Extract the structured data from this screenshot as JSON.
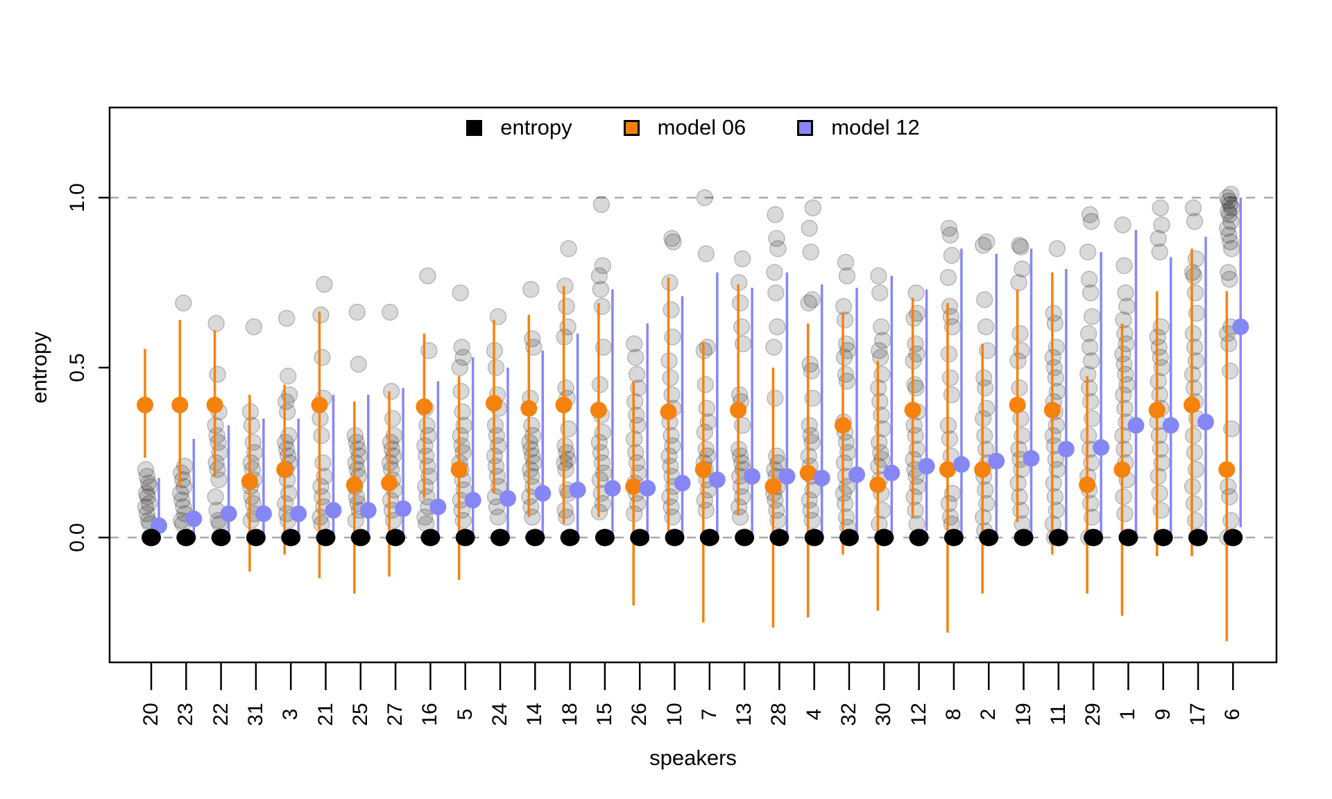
{
  "legend": {
    "items": [
      {
        "label": "entropy",
        "color": "#000000"
      },
      {
        "label": "model 06",
        "color": "#f5820d"
      },
      {
        "label": "model 12",
        "color": "#8687f7"
      }
    ]
  },
  "axes": {
    "x_label": "speakers",
    "y_label": "entropy",
    "y_ticks": [
      "0.0",
      "0.5",
      "1.0"
    ],
    "y_tick_values": [
      0,
      0.5,
      1
    ]
  },
  "chart_data": {
    "type": "scatter",
    "title": "",
    "xlabel": "speakers",
    "ylabel": "entropy",
    "ylim": [
      -0.39,
      1.27
    ],
    "gridlines_dashed_at": [
      0.0,
      1.0
    ],
    "legend_position": "top-center-inside",
    "colors": {
      "entropy_dot": "#000000",
      "model06": "#f5820d",
      "model12": "#8687f7",
      "gray_point_fill": "rgba(0,0,0,0.15)",
      "gray_point_stroke": "rgba(0,0,0,0.22)",
      "gridline": "#a8a8a8"
    },
    "series_note": "per speaker: entropy = black dot value; model06/model12 = mean dot with lo-hi error bar; points = individual gray entropy observations",
    "speakers": [
      {
        "label": "20",
        "entropy": 0.0,
        "model06": {
          "mean": 0.39,
          "lo": 0.235,
          "hi": 0.555
        },
        "model12": {
          "mean": 0.035,
          "lo": 0.0,
          "hi": 0.175
        },
        "points": [
          0.2,
          0.18,
          0.16,
          0.15,
          0.13,
          0.12,
          0.1,
          0.09,
          0.07,
          0.05,
          0.04
        ]
      },
      {
        "label": "23",
        "entropy": 0.0,
        "model06": {
          "mean": 0.39,
          "lo": 0.15,
          "hi": 0.64
        },
        "model12": {
          "mean": 0.055,
          "lo": 0.0,
          "hi": 0.29
        },
        "points": [
          0.69,
          0.21,
          0.19,
          0.17,
          0.15,
          0.13,
          0.11,
          0.09,
          0.07,
          0.05,
          0.04
        ]
      },
      {
        "label": "22",
        "entropy": 0.0,
        "model06": {
          "mean": 0.39,
          "lo": 0.18,
          "hi": 0.61
        },
        "model12": {
          "mean": 0.07,
          "lo": 0.0,
          "hi": 0.33
        },
        "points": [
          0.63,
          0.48,
          0.37,
          0.33,
          0.3,
          0.28,
          0.25,
          0.22,
          0.2,
          0.17,
          0.12,
          0.08,
          0.05,
          0.04
        ]
      },
      {
        "label": "31",
        "entropy": 0.0,
        "model06": {
          "mean": 0.165,
          "lo": -0.1,
          "hi": 0.42
        },
        "model12": {
          "mean": 0.07,
          "lo": 0.0,
          "hi": 0.35
        },
        "points": [
          0.62,
          0.37,
          0.33,
          0.28,
          0.25,
          0.22,
          0.2,
          0.17,
          0.15,
          0.12,
          0.1,
          0.07,
          0.05
        ]
      },
      {
        "label": "3",
        "entropy": 0.0,
        "model06": {
          "mean": 0.2,
          "lo": -0.05,
          "hi": 0.45
        },
        "model12": {
          "mean": 0.07,
          "lo": 0.0,
          "hi": 0.35
        },
        "points": [
          0.645,
          0.475,
          0.42,
          0.4,
          0.37,
          0.3,
          0.28,
          0.26,
          0.24,
          0.22,
          0.2,
          0.17,
          0.13,
          0.1,
          0.07,
          0.05
        ]
      },
      {
        "label": "21",
        "entropy": 0.0,
        "model06": {
          "mean": 0.39,
          "lo": -0.12,
          "hi": 0.665
        },
        "model12": {
          "mean": 0.08,
          "lo": 0.0,
          "hi": 0.42
        },
        "points": [
          0.745,
          0.655,
          0.53,
          0.41,
          0.35,
          0.3,
          0.22,
          0.18,
          0.15,
          0.12,
          0.09,
          0.06,
          0.04
        ]
      },
      {
        "label": "25",
        "entropy": 0.0,
        "model06": {
          "mean": 0.155,
          "lo": -0.165,
          "hi": 0.4
        },
        "model12": {
          "mean": 0.08,
          "lo": 0.0,
          "hi": 0.42
        },
        "points": [
          0.663,
          0.51,
          0.3,
          0.28,
          0.26,
          0.24,
          0.22,
          0.2,
          0.18,
          0.15,
          0.12,
          0.1,
          0.08,
          0.05
        ]
      },
      {
        "label": "27",
        "entropy": 0.0,
        "model06": {
          "mean": 0.16,
          "lo": -0.115,
          "hi": 0.43
        },
        "model12": {
          "mean": 0.085,
          "lo": 0.0,
          "hi": 0.44
        },
        "points": [
          0.663,
          0.43,
          0.35,
          0.3,
          0.28,
          0.26,
          0.24,
          0.22,
          0.2,
          0.17,
          0.14,
          0.11,
          0.08,
          0.05
        ]
      },
      {
        "label": "16",
        "entropy": 0.0,
        "model06": {
          "mean": 0.385,
          "lo": 0.115,
          "hi": 0.6
        },
        "model12": {
          "mean": 0.09,
          "lo": 0.0,
          "hi": 0.46
        },
        "points": [
          0.77,
          0.55,
          0.38,
          0.33,
          0.3,
          0.27,
          0.24,
          0.21,
          0.18,
          0.15,
          0.12,
          0.09,
          0.06,
          0.04
        ]
      },
      {
        "label": "5",
        "entropy": 0.0,
        "model06": {
          "mean": 0.2,
          "lo": -0.125,
          "hi": 0.475
        },
        "model12": {
          "mean": 0.11,
          "lo": 0.0,
          "hi": 0.53
        },
        "points": [
          0.72,
          0.56,
          0.53,
          0.5,
          0.43,
          0.37,
          0.33,
          0.3,
          0.27,
          0.25,
          0.22,
          0.2,
          0.17,
          0.14,
          0.11,
          0.08,
          0.05
        ]
      },
      {
        "label": "24",
        "entropy": 0.0,
        "model06": {
          "mean": 0.395,
          "lo": 0.13,
          "hi": 0.64
        },
        "model12": {
          "mean": 0.115,
          "lo": 0.0,
          "hi": 0.5
        },
        "points": [
          0.65,
          0.55,
          0.5,
          0.42,
          0.38,
          0.33,
          0.3,
          0.27,
          0.24,
          0.21,
          0.18,
          0.15,
          0.12,
          0.09,
          0.06
        ]
      },
      {
        "label": "14",
        "entropy": 0.0,
        "model06": {
          "mean": 0.38,
          "lo": 0.06,
          "hi": 0.655
        },
        "model12": {
          "mean": 0.13,
          "lo": 0.0,
          "hi": 0.55
        },
        "points": [
          0.73,
          0.585,
          0.56,
          0.41,
          0.33,
          0.3,
          0.28,
          0.26,
          0.24,
          0.22,
          0.2,
          0.18,
          0.15,
          0.12,
          0.09,
          0.06
        ]
      },
      {
        "label": "18",
        "entropy": 0.0,
        "model06": {
          "mean": 0.39,
          "lo": 0.04,
          "hi": 0.74
        },
        "model12": {
          "mean": 0.14,
          "lo": 0.0,
          "hi": 0.6
        },
        "points": [
          0.85,
          0.74,
          0.68,
          0.62,
          0.59,
          0.44,
          0.41,
          0.32,
          0.27,
          0.25,
          0.23,
          0.22,
          0.2,
          0.14,
          0.13,
          0.08,
          0.06
        ]
      },
      {
        "label": "15",
        "entropy": 0.0,
        "model06": {
          "mean": 0.375,
          "lo": 0.06,
          "hi": 0.69
        },
        "model12": {
          "mean": 0.145,
          "lo": 0.0,
          "hi": 0.73
        },
        "points": [
          0.98,
          0.8,
          0.77,
          0.73,
          0.68,
          0.56,
          0.45,
          0.36,
          0.31,
          0.28,
          0.25,
          0.22,
          0.19,
          0.17,
          0.13,
          0.1,
          0.075
        ]
      },
      {
        "label": "26",
        "entropy": 0.0,
        "model06": {
          "mean": 0.15,
          "lo": -0.2,
          "hi": 0.46
        },
        "model12": {
          "mean": 0.145,
          "lo": 0.0,
          "hi": 0.63
        },
        "points": [
          0.57,
          0.53,
          0.48,
          0.44,
          0.4,
          0.36,
          0.33,
          0.29,
          0.25,
          0.22,
          0.19,
          0.16,
          0.13,
          0.1,
          0.07
        ]
      },
      {
        "label": "10",
        "entropy": 0.0,
        "model06": {
          "mean": 0.37,
          "lo": -0.02,
          "hi": 0.765
        },
        "model12": {
          "mean": 0.16,
          "lo": 0.0,
          "hi": 0.71
        },
        "points": [
          0.88,
          0.87,
          0.75,
          0.67,
          0.59,
          0.52,
          0.47,
          0.42,
          0.38,
          0.34,
          0.3,
          0.27,
          0.24,
          0.21,
          0.18,
          0.15,
          0.12,
          0.09,
          0.06
        ]
      },
      {
        "label": "7",
        "entropy": 0.0,
        "model06": {
          "mean": 0.2,
          "lo": -0.25,
          "hi": 0.575
        },
        "model12": {
          "mean": 0.17,
          "lo": 0.0,
          "hi": 0.78
        },
        "points": [
          1.0,
          0.835,
          0.56,
          0.55,
          0.45,
          0.38,
          0.34,
          0.31,
          0.26,
          0.24,
          0.22,
          0.2,
          0.17,
          0.14,
          0.11,
          0.08
        ]
      },
      {
        "label": "13",
        "entropy": 0.0,
        "model06": {
          "mean": 0.375,
          "lo": 0.065,
          "hi": 0.745
        },
        "model12": {
          "mean": 0.18,
          "lo": 0.0,
          "hi": 0.735
        },
        "points": [
          0.82,
          0.75,
          0.69,
          0.62,
          0.57,
          0.42,
          0.4,
          0.33,
          0.26,
          0.24,
          0.22,
          0.2,
          0.18,
          0.15,
          0.12,
          0.09,
          0.06
        ]
      },
      {
        "label": "28",
        "entropy": 0.0,
        "model06": {
          "mean": 0.15,
          "lo": -0.265,
          "hi": 0.5
        },
        "model12": {
          "mean": 0.18,
          "lo": 0.0,
          "hi": 0.78
        },
        "points": [
          0.95,
          0.88,
          0.85,
          0.78,
          0.72,
          0.62,
          0.56,
          0.41,
          0.24,
          0.22,
          0.2,
          0.18,
          0.15,
          0.13,
          0.11,
          0.08,
          0.05
        ]
      },
      {
        "label": "4",
        "entropy": 0.0,
        "model06": {
          "mean": 0.19,
          "lo": -0.235,
          "hi": 0.63
        },
        "model12": {
          "mean": 0.175,
          "lo": -0.01,
          "hi": 0.745
        },
        "points": [
          0.97,
          0.91,
          0.84,
          0.7,
          0.69,
          0.51,
          0.49,
          0.41,
          0.33,
          0.3,
          0.28,
          0.24,
          0.21,
          0.18,
          0.14,
          0.11,
          0.08,
          0.05
        ]
      },
      {
        "label": "32",
        "entropy": 0.0,
        "model06": {
          "mean": 0.33,
          "lo": -0.05,
          "hi": 0.66
        },
        "model12": {
          "mean": 0.185,
          "lo": -0.01,
          "hi": 0.735
        },
        "points": [
          0.81,
          0.77,
          0.68,
          0.64,
          0.57,
          0.55,
          0.53,
          0.48,
          0.46,
          0.34,
          0.31,
          0.28,
          0.25,
          0.22,
          0.18,
          0.15,
          0.13,
          0.1,
          0.06,
          0.03
        ]
      },
      {
        "label": "30",
        "entropy": 0.0,
        "model06": {
          "mean": 0.155,
          "lo": -0.215,
          "hi": 0.52
        },
        "model12": {
          "mean": 0.19,
          "lo": 0.0,
          "hi": 0.77
        },
        "points": [
          0.77,
          0.72,
          0.62,
          0.58,
          0.55,
          0.53,
          0.48,
          0.44,
          0.4,
          0.36,
          0.32,
          0.28,
          0.25,
          0.23,
          0.21,
          0.17,
          0.13,
          0.08,
          0.04
        ]
      },
      {
        "label": "12",
        "entropy": 0.0,
        "model06": {
          "mean": 0.375,
          "lo": 0.06,
          "hi": 0.705
        },
        "model12": {
          "mean": 0.21,
          "lo": 0.02,
          "hi": 0.73
        },
        "points": [
          0.72,
          0.66,
          0.645,
          0.57,
          0.54,
          0.52,
          0.45,
          0.44,
          0.37,
          0.33,
          0.3,
          0.26,
          0.23,
          0.2,
          0.18,
          0.15,
          0.12,
          0.08,
          0.04
        ]
      },
      {
        "label": "8",
        "entropy": 0.0,
        "model06": {
          "mean": 0.2,
          "lo": -0.28,
          "hi": 0.69
        },
        "model12": {
          "mean": 0.215,
          "lo": 0.0,
          "hi": 0.85
        },
        "points": [
          0.91,
          0.89,
          0.83,
          0.765,
          0.68,
          0.65,
          0.62,
          0.54,
          0.47,
          0.42,
          0.33,
          0.29,
          0.24,
          0.13,
          0.1,
          0.06,
          0.04
        ]
      },
      {
        "label": "2",
        "entropy": 0.0,
        "model06": {
          "mean": 0.2,
          "lo": -0.165,
          "hi": 0.57
        },
        "model12": {
          "mean": 0.225,
          "lo": 0.0,
          "hi": 0.835
        },
        "points": [
          0.87,
          0.86,
          0.7,
          0.62,
          0.55,
          0.47,
          0.44,
          0.38,
          0.35,
          0.3,
          0.26,
          0.22,
          0.18,
          0.14,
          0.1,
          0.06,
          0.02
        ]
      },
      {
        "label": "19",
        "entropy": 0.0,
        "model06": {
          "mean": 0.39,
          "lo": 0.045,
          "hi": 0.73
        },
        "model12": {
          "mean": 0.233,
          "lo": 0.0,
          "hi": 0.85
        },
        "points": [
          0.86,
          0.855,
          0.79,
          0.75,
          0.6,
          0.55,
          0.52,
          0.44,
          0.35,
          0.3,
          0.26,
          0.23,
          0.2,
          0.16,
          0.12,
          0.08,
          0.04
        ]
      },
      {
        "label": "11",
        "entropy": 0.0,
        "model06": {
          "mean": 0.375,
          "lo": -0.05,
          "hi": 0.78
        },
        "model12": {
          "mean": 0.26,
          "lo": 0.0,
          "hi": 0.79
        },
        "points": [
          0.85,
          0.66,
          0.63,
          0.56,
          0.53,
          0.5,
          0.47,
          0.43,
          0.4,
          0.37,
          0.33,
          0.3,
          0.27,
          0.23,
          0.2,
          0.16,
          0.12,
          0.08,
          0.04,
          0.0
        ]
      },
      {
        "label": "29",
        "entropy": 0.0,
        "model06": {
          "mean": 0.155,
          "lo": -0.165,
          "hi": 0.475
        },
        "model12": {
          "mean": 0.265,
          "lo": 0.0,
          "hi": 0.84
        },
        "points": [
          0.95,
          0.93,
          0.84,
          0.76,
          0.72,
          0.65,
          0.6,
          0.56,
          0.52,
          0.48,
          0.44,
          0.4,
          0.35,
          0.3,
          0.26,
          0.22,
          0.18,
          0.14,
          0.1,
          0.06,
          0.0
        ]
      },
      {
        "label": "1",
        "entropy": 0.0,
        "model06": {
          "mean": 0.2,
          "lo": -0.23,
          "hi": 0.63
        },
        "model12": {
          "mean": 0.33,
          "lo": 0.0,
          "hi": 0.905
        },
        "points": [
          0.92,
          0.8,
          0.72,
          0.68,
          0.64,
          0.6,
          0.57,
          0.54,
          0.51,
          0.48,
          0.45,
          0.42,
          0.38,
          0.34,
          0.3,
          0.26,
          0.22,
          0.17,
          0.12,
          0.07
        ]
      },
      {
        "label": "9",
        "entropy": 0.0,
        "model06": {
          "mean": 0.375,
          "lo": -0.055,
          "hi": 0.725
        },
        "model12": {
          "mean": 0.33,
          "lo": 0.0,
          "hi": 0.825
        },
        "points": [
          0.97,
          0.92,
          0.88,
          0.84,
          0.62,
          0.59,
          0.56,
          0.53,
          0.5,
          0.46,
          0.42,
          0.38,
          0.34,
          0.3,
          0.26,
          0.22,
          0.18,
          0.13,
          0.08
        ]
      },
      {
        "label": "17",
        "entropy": 0.0,
        "model06": {
          "mean": 0.39,
          "lo": -0.055,
          "hi": 0.85
        },
        "model12": {
          "mean": 0.34,
          "lo": 0.0,
          "hi": 0.885
        },
        "points": [
          0.97,
          0.93,
          0.82,
          0.78,
          0.77,
          0.72,
          0.66,
          0.6,
          0.56,
          0.52,
          0.48,
          0.44,
          0.4,
          0.35,
          0.3,
          0.25,
          0.2,
          0.15,
          0.1,
          0.05,
          0.0
        ]
      },
      {
        "label": "6",
        "entropy": 0.0,
        "model06": {
          "mean": 0.2,
          "lo": -0.305,
          "hi": 0.725
        },
        "model12": {
          "mean": 0.62,
          "lo": 0.03,
          "hi": 1.0
        },
        "points": [
          1.01,
          1.0,
          0.99,
          0.98,
          0.97,
          0.96,
          0.95,
          0.93,
          0.91,
          0.89,
          0.87,
          0.85,
          0.78,
          0.76,
          0.62,
          0.6,
          0.57,
          0.49,
          0.32,
          0.15,
          0.12,
          0.05,
          0.0
        ]
      }
    ]
  }
}
